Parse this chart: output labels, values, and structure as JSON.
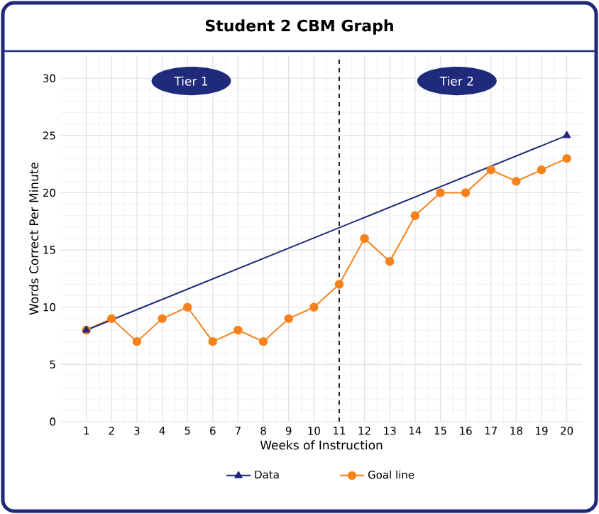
{
  "chart_data": {
    "type": "line",
    "title": "Student 2 CBM Graph",
    "xlabel": "Weeks of Instruction",
    "ylabel": "Words Correct Per Minute",
    "xlim": [
      0,
      20.6
    ],
    "xticks": [
      1,
      2,
      3,
      4,
      5,
      6,
      7,
      8,
      9,
      10,
      11,
      12,
      13,
      14,
      15,
      16,
      17,
      18,
      19,
      20
    ],
    "ylim": [
      0,
      32
    ],
    "yticks": [
      0,
      5,
      10,
      15,
      20,
      25,
      30
    ],
    "grid": true,
    "legend": "bottom",
    "line_style": "solid",
    "series": [
      {
        "name": "Data",
        "color": "#1f2a7a",
        "marker": "triangle",
        "x": [
          1,
          20
        ],
        "values": [
          8,
          25
        ]
      },
      {
        "name": "Goal line",
        "color": "#f7821b",
        "marker": "circle",
        "x": [
          1,
          2,
          3,
          4,
          5,
          6,
          7,
          8,
          9,
          10,
          11,
          12,
          13,
          14,
          15,
          16,
          17,
          18,
          19,
          20
        ],
        "values": [
          8,
          9,
          7,
          9,
          10,
          7,
          8,
          7,
          9,
          10,
          12,
          16,
          14,
          18,
          20,
          20,
          22,
          21,
          22,
          23
        ]
      }
    ],
    "ref_lines": [
      {
        "axis": "x",
        "value": 11,
        "color": "#000000",
        "line_style": "dashed"
      }
    ],
    "annotations": [
      "Tier 1",
      "Tier 2"
    ]
  }
}
